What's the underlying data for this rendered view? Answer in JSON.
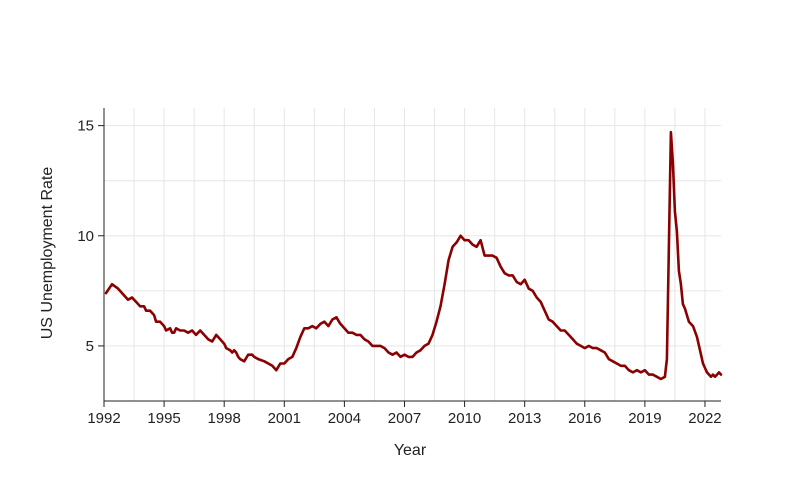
{
  "chart_data": {
    "type": "line",
    "title": "",
    "xlabel": "Year",
    "ylabel": "US Unemployment Rate",
    "xlim": [
      1992,
      2022.8
    ],
    "ylim": [
      2.5,
      15.8
    ],
    "xticks": [
      1992,
      1995,
      1998,
      2001,
      2004,
      2007,
      2010,
      2013,
      2016,
      2019,
      2022
    ],
    "yticks": [
      5,
      10,
      15
    ],
    "grid": true,
    "color": "#8b0000",
    "series": [
      {
        "values": [
          [
            1992.1,
            7.4
          ],
          [
            1992.4,
            7.8
          ],
          [
            1992.7,
            7.6
          ],
          [
            1993.0,
            7.3
          ],
          [
            1993.2,
            7.1
          ],
          [
            1993.4,
            7.2
          ],
          [
            1993.6,
            7.0
          ],
          [
            1993.8,
            6.8
          ],
          [
            1994.0,
            6.8
          ],
          [
            1994.1,
            6.6
          ],
          [
            1994.3,
            6.6
          ],
          [
            1994.5,
            6.4
          ],
          [
            1994.6,
            6.1
          ],
          [
            1994.8,
            6.1
          ],
          [
            1995.0,
            5.9
          ],
          [
            1995.1,
            5.7
          ],
          [
            1995.3,
            5.8
          ],
          [
            1995.4,
            5.6
          ],
          [
            1995.5,
            5.6
          ],
          [
            1995.6,
            5.8
          ],
          [
            1995.8,
            5.7
          ],
          [
            1996.0,
            5.7
          ],
          [
            1996.2,
            5.6
          ],
          [
            1996.4,
            5.7
          ],
          [
            1996.5,
            5.6
          ],
          [
            1996.6,
            5.5
          ],
          [
            1996.8,
            5.7
          ],
          [
            1997.0,
            5.5
          ],
          [
            1997.2,
            5.3
          ],
          [
            1997.4,
            5.2
          ],
          [
            1997.6,
            5.5
          ],
          [
            1997.8,
            5.3
          ],
          [
            1998.0,
            5.1
          ],
          [
            1998.1,
            4.9
          ],
          [
            1998.3,
            4.8
          ],
          [
            1998.4,
            4.7
          ],
          [
            1998.5,
            4.8
          ],
          [
            1998.6,
            4.7
          ],
          [
            1998.7,
            4.5
          ],
          [
            1998.8,
            4.4
          ],
          [
            1999.0,
            4.3
          ],
          [
            1999.2,
            4.6
          ],
          [
            1999.4,
            4.6
          ],
          [
            1999.5,
            4.5
          ],
          [
            1999.7,
            4.4
          ],
          [
            2000.0,
            4.3
          ],
          [
            2000.2,
            4.2
          ],
          [
            2000.4,
            4.1
          ],
          [
            2000.6,
            3.9
          ],
          [
            2000.8,
            4.2
          ],
          [
            2001.0,
            4.2
          ],
          [
            2001.2,
            4.4
          ],
          [
            2001.4,
            4.5
          ],
          [
            2001.6,
            4.9
          ],
          [
            2001.8,
            5.4
          ],
          [
            2002.0,
            5.8
          ],
          [
            2002.2,
            5.8
          ],
          [
            2002.4,
            5.9
          ],
          [
            2002.6,
            5.8
          ],
          [
            2002.8,
            6.0
          ],
          [
            2003.0,
            6.1
          ],
          [
            2003.2,
            5.9
          ],
          [
            2003.4,
            6.2
          ],
          [
            2003.6,
            6.3
          ],
          [
            2003.8,
            6.0
          ],
          [
            2004.0,
            5.8
          ],
          [
            2004.2,
            5.6
          ],
          [
            2004.4,
            5.6
          ],
          [
            2004.6,
            5.5
          ],
          [
            2004.8,
            5.5
          ],
          [
            2005.0,
            5.3
          ],
          [
            2005.2,
            5.2
          ],
          [
            2005.4,
            5.0
          ],
          [
            2005.6,
            5.0
          ],
          [
            2005.8,
            5.0
          ],
          [
            2006.0,
            4.9
          ],
          [
            2006.2,
            4.7
          ],
          [
            2006.4,
            4.6
          ],
          [
            2006.6,
            4.7
          ],
          [
            2006.8,
            4.5
          ],
          [
            2007.0,
            4.6
          ],
          [
            2007.2,
            4.5
          ],
          [
            2007.4,
            4.5
          ],
          [
            2007.6,
            4.7
          ],
          [
            2007.8,
            4.8
          ],
          [
            2008.0,
            5.0
          ],
          [
            2008.2,
            5.1
          ],
          [
            2008.4,
            5.5
          ],
          [
            2008.6,
            6.1
          ],
          [
            2008.8,
            6.8
          ],
          [
            2009.0,
            7.8
          ],
          [
            2009.2,
            8.9
          ],
          [
            2009.4,
            9.5
          ],
          [
            2009.6,
            9.7
          ],
          [
            2009.8,
            10.0
          ],
          [
            2010.0,
            9.8
          ],
          [
            2010.2,
            9.8
          ],
          [
            2010.4,
            9.6
          ],
          [
            2010.6,
            9.5
          ],
          [
            2010.8,
            9.8
          ],
          [
            2011.0,
            9.1
          ],
          [
            2011.2,
            9.1
          ],
          [
            2011.4,
            9.1
          ],
          [
            2011.6,
            9.0
          ],
          [
            2011.8,
            8.6
          ],
          [
            2012.0,
            8.3
          ],
          [
            2012.2,
            8.2
          ],
          [
            2012.4,
            8.2
          ],
          [
            2012.6,
            7.9
          ],
          [
            2012.8,
            7.8
          ],
          [
            2013.0,
            8.0
          ],
          [
            2013.2,
            7.6
          ],
          [
            2013.4,
            7.5
          ],
          [
            2013.6,
            7.2
          ],
          [
            2013.8,
            7.0
          ],
          [
            2014.0,
            6.6
          ],
          [
            2014.2,
            6.2
          ],
          [
            2014.4,
            6.1
          ],
          [
            2014.6,
            5.9
          ],
          [
            2014.8,
            5.7
          ],
          [
            2015.0,
            5.7
          ],
          [
            2015.2,
            5.5
          ],
          [
            2015.4,
            5.3
          ],
          [
            2015.6,
            5.1
          ],
          [
            2015.8,
            5.0
          ],
          [
            2016.0,
            4.9
          ],
          [
            2016.2,
            5.0
          ],
          [
            2016.4,
            4.9
          ],
          [
            2016.6,
            4.9
          ],
          [
            2016.8,
            4.8
          ],
          [
            2017.0,
            4.7
          ],
          [
            2017.2,
            4.4
          ],
          [
            2017.4,
            4.3
          ],
          [
            2017.6,
            4.2
          ],
          [
            2017.8,
            4.1
          ],
          [
            2018.0,
            4.1
          ],
          [
            2018.2,
            3.9
          ],
          [
            2018.4,
            3.8
          ],
          [
            2018.6,
            3.9
          ],
          [
            2018.8,
            3.8
          ],
          [
            2019.0,
            3.9
          ],
          [
            2019.2,
            3.7
          ],
          [
            2019.4,
            3.7
          ],
          [
            2019.6,
            3.6
          ],
          [
            2019.8,
            3.5
          ],
          [
            2020.0,
            3.6
          ],
          [
            2020.1,
            4.4
          ],
          [
            2020.3,
            14.7
          ],
          [
            2020.4,
            13.3
          ],
          [
            2020.5,
            11.1
          ],
          [
            2020.6,
            10.2
          ],
          [
            2020.7,
            8.4
          ],
          [
            2020.8,
            7.8
          ],
          [
            2020.9,
            6.9
          ],
          [
            2021.0,
            6.7
          ],
          [
            2021.2,
            6.1
          ],
          [
            2021.4,
            5.9
          ],
          [
            2021.6,
            5.4
          ],
          [
            2021.8,
            4.6
          ],
          [
            2021.9,
            4.2
          ],
          [
            2022.0,
            4.0
          ],
          [
            2022.1,
            3.8
          ],
          [
            2022.3,
            3.6
          ],
          [
            2022.4,
            3.7
          ],
          [
            2022.5,
            3.6
          ],
          [
            2022.6,
            3.7
          ],
          [
            2022.7,
            3.8
          ],
          [
            2022.8,
            3.7
          ]
        ]
      }
    ]
  }
}
